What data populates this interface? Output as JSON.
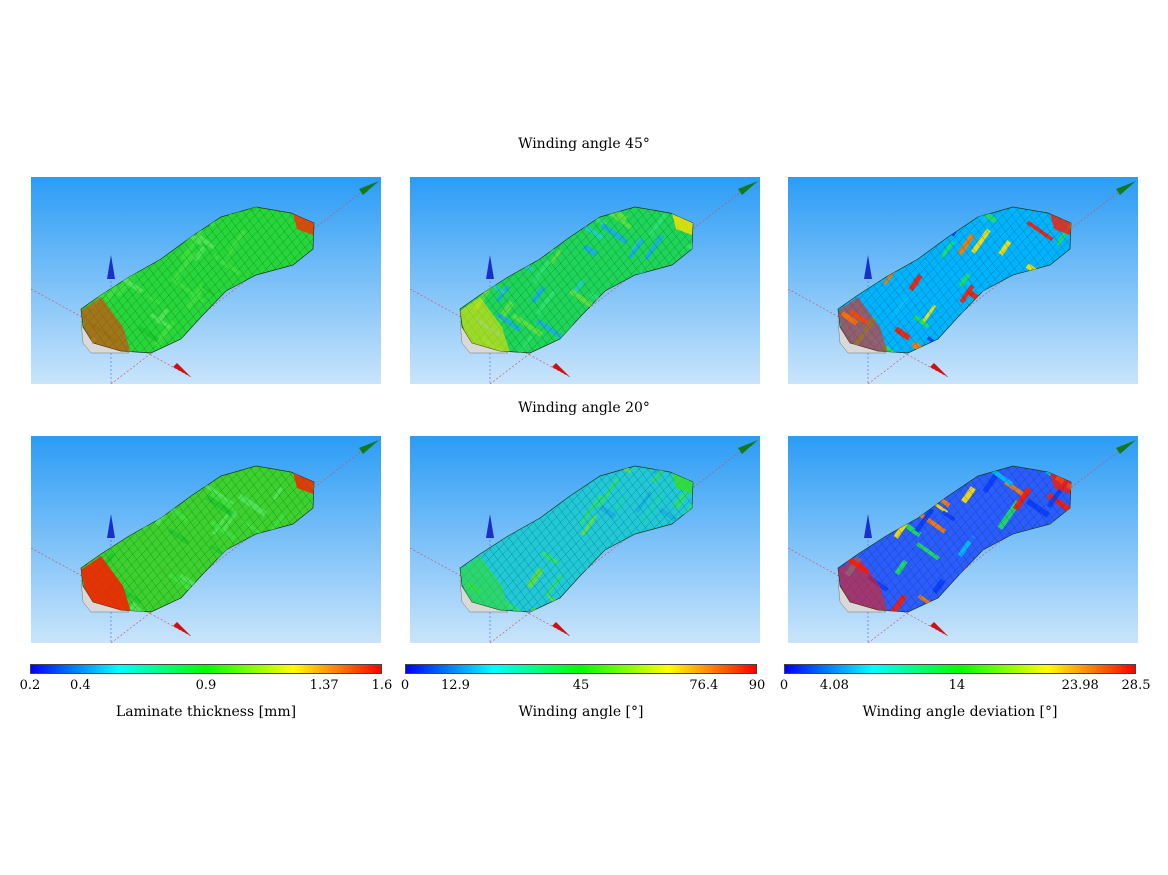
{
  "rows": [
    {
      "title": "Winding angle 45°"
    },
    {
      "title": "Winding angle 20°"
    }
  ],
  "panels": [
    {
      "row": 0,
      "col": 0,
      "field": "thickness",
      "dominant": "#27d63a",
      "accent": "#ff2a00"
    },
    {
      "row": 0,
      "col": 1,
      "field": "angle",
      "dominant": "#1ed55a",
      "accent": "#ffe000"
    },
    {
      "row": 0,
      "col": 2,
      "field": "deviation",
      "dominant": "#00b3ff",
      "accent": "#ff1a00"
    },
    {
      "row": 1,
      "col": 0,
      "field": "thickness",
      "dominant": "#3cd12e",
      "accent": "#ff1a00"
    },
    {
      "row": 1,
      "col": 1,
      "field": "angle",
      "dominant": "#20c8d8",
      "accent": "#34e01e"
    },
    {
      "row": 1,
      "col": 2,
      "field": "deviation",
      "dominant": "#2a5cff",
      "accent": "#ff1a00"
    }
  ],
  "colorbars": [
    {
      "label": "Laminate thickness [mm]",
      "ticks": [
        {
          "text": "0.2",
          "value": 0.2
        },
        {
          "text": "0.4",
          "value": 0.4
        },
        {
          "text": "0.9",
          "value": 0.9
        },
        {
          "text": "1.37",
          "value": 1.37
        },
        {
          "text": "1.6",
          "value": 1.6
        }
      ],
      "min": 0.2,
      "max": 1.6
    },
    {
      "label": "Winding angle [°]",
      "ticks": [
        {
          "text": "0",
          "value": 0
        },
        {
          "text": "12.9",
          "value": 12.9
        },
        {
          "text": "45",
          "value": 45
        },
        {
          "text": "76.4",
          "value": 76.4
        },
        {
          "text": "90",
          "value": 90
        }
      ],
      "min": 0,
      "max": 90
    },
    {
      "label": "Winding angle deviation [°]",
      "ticks": [
        {
          "text": "0",
          "value": 0
        },
        {
          "text": "4.08",
          "value": 4.08
        },
        {
          "text": "14",
          "value": 14
        },
        {
          "text": "23.98",
          "value": 23.98
        },
        {
          "text": "28.5",
          "value": 28.5
        }
      ],
      "min": 0,
      "max": 28.5
    }
  ],
  "colormap": [
    "#0000ff",
    "#00ffff",
    "#00ff00",
    "#ffff00",
    "#ff0000"
  ],
  "viewport_gradient": [
    "#2b9cf5",
    "#c9e4fb"
  ]
}
